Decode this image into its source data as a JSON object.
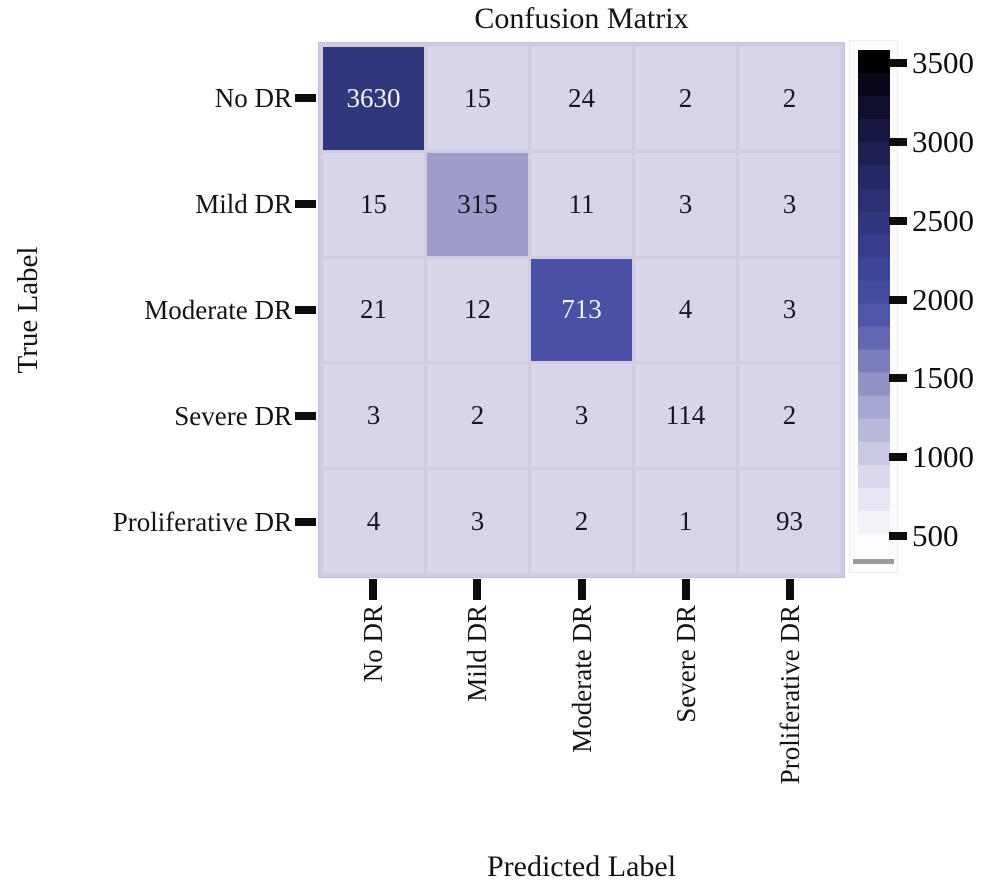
{
  "chart_data": {
    "type": "heatmap",
    "title": "Confusion Matrix",
    "xlabel": "Predicted Label",
    "ylabel": "True Label",
    "categories": [
      "No DR",
      "Mild DR",
      "Moderate DR",
      "Severe DR",
      "Proliferative DR"
    ],
    "matrix": [
      [
        3630,
        15,
        24,
        2,
        2
      ],
      [
        15,
        315,
        11,
        3,
        3
      ],
      [
        21,
        12,
        713,
        4,
        3
      ],
      [
        3,
        2,
        3,
        114,
        2
      ],
      [
        4,
        3,
        2,
        1,
        93
      ]
    ],
    "value_colors": [
      {
        "min": 2000,
        "bg": "#31377b",
        "fg": "#f4f2fa"
      },
      {
        "min": 500,
        "bg": "#4a51a4",
        "fg": "#f4f2fa"
      },
      {
        "min": 200,
        "bg": "#9d9cca",
        "fg": "#17171f"
      },
      {
        "min": 0,
        "bg": "#d8d4ea",
        "fg": "#17171f"
      }
    ],
    "colorbar": {
      "ticks": [
        "3500",
        "3000",
        "2500",
        "2000",
        "1500",
        "1000",
        "500"
      ],
      "gradient": [
        "#010104",
        "#08081a",
        "#10102e",
        "#171842",
        "#1e2054",
        "#252864",
        "#2b2f72",
        "#313680",
        "#373d8c",
        "#3d4497",
        "#444ca0",
        "#4f55a9",
        "#6468b2",
        "#7b7ebd",
        "#9193c7",
        "#a5a6d1",
        "#b8b8db",
        "#c9c9e4",
        "#d9d8ed",
        "#e7e6f4",
        "#f3f2f9",
        "#fdfdff"
      ]
    },
    "layout_hints": {
      "legend_position": "right-colorbar",
      "grid": "off",
      "x_tick_rotation": 90
    }
  }
}
